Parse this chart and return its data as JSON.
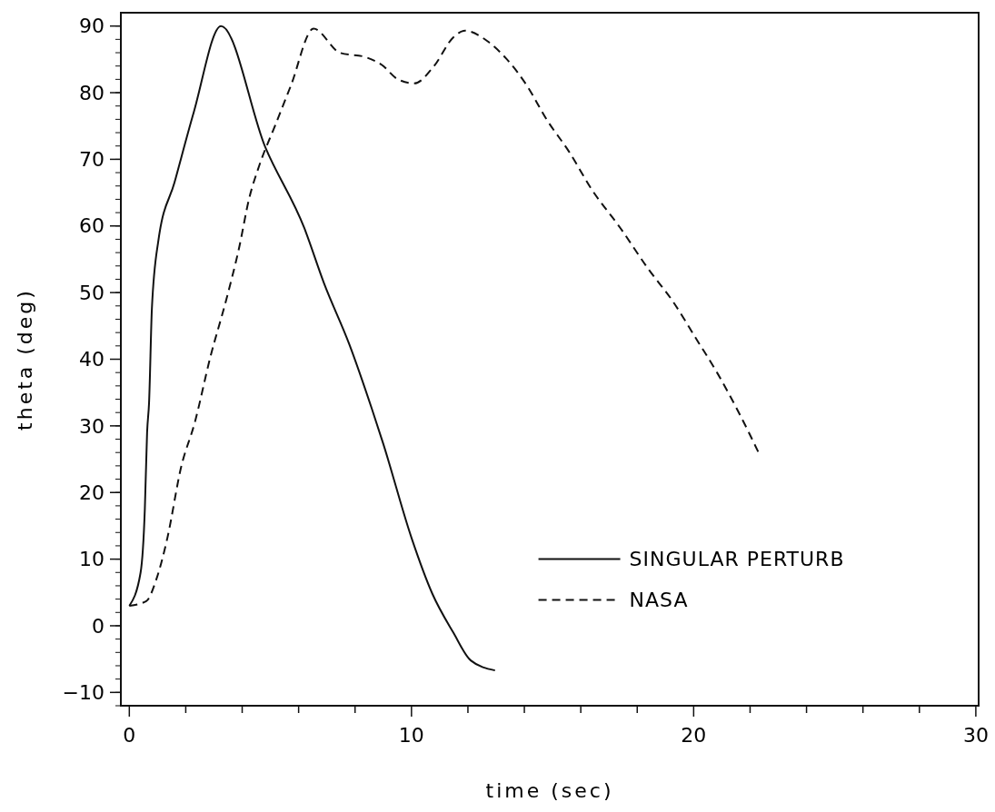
{
  "chart_data": {
    "type": "line",
    "xlabel": "time (sec)",
    "ylabel": "theta (deg)",
    "xlim": [
      -0.3,
      30.1
    ],
    "ylim": [
      -12,
      92
    ],
    "xticks": [
      0,
      {
        "value": 2,
        "label": null
      },
      {
        "value": 4,
        "label": null
      },
      {
        "value": 6,
        "label": null
      },
      {
        "value": 8,
        "label": null
      },
      10,
      {
        "value": 12,
        "label": null
      },
      {
        "value": 14,
        "label": null
      },
      {
        "value": 16,
        "label": null
      },
      {
        "value": 18,
        "label": null
      },
      20,
      {
        "value": 22,
        "label": null
      },
      {
        "value": 24,
        "label": null
      },
      {
        "value": 26,
        "label": null
      },
      {
        "value": 28,
        "label": null
      },
      30
    ],
    "yticks": [
      {
        "value": -10,
        "label": "−10"
      },
      0,
      10,
      20,
      30,
      40,
      50,
      60,
      70,
      80,
      90
    ],
    "legend": "bottom right",
    "grid": false,
    "marker": "none",
    "series": [
      {
        "name": "SINGULAR PERTURB",
        "color": "#111111",
        "line_style": "solid",
        "x": [
          0,
          0.4,
          0.55,
          0.63,
          0.7,
          0.8,
          1.03,
          1.6,
          2.28,
          3.25,
          4.82,
          6.2,
          6.9,
          7.8,
          8.6,
          9.0,
          10.0,
          10.74,
          11.48,
          12.1,
          12.96
        ],
        "values": [
          3,
          8,
          17.5,
          29,
          33.5,
          47.6,
          57.8,
          66.5,
          77,
          90,
          71.8,
          59.7,
          51.4,
          42.2,
          32.5,
          27.3,
          13.2,
          4.8,
          -1,
          -5.2,
          -6.7
        ]
      },
      {
        "name": "NASA",
        "color": "#111111",
        "line_style": "dashed",
        "x": [
          0,
          0.6,
          0.96,
          1.35,
          1.83,
          2.32,
          2.87,
          3.44,
          3.9,
          4.24,
          4.6,
          5.18,
          5.72,
          6.53,
          7.46,
          8.4,
          8.94,
          9.52,
          10.1,
          10.8,
          11.48,
          11.9,
          12.7,
          13.34,
          14.1,
          14.8,
          15.56,
          16.4,
          17.4,
          18.4,
          19.26,
          20.1,
          20.87,
          21.6,
          22.3
        ],
        "values": [
          3,
          3.7,
          7,
          13.2,
          23.7,
          30.5,
          40.3,
          49,
          56.9,
          64,
          69,
          75.2,
          81,
          89.6,
          86,
          85.3,
          84.2,
          82,
          81.4,
          84,
          88.3,
          89.3,
          87.7,
          85.2,
          81,
          75.9,
          71.3,
          65.4,
          59.7,
          53.5,
          48.7,
          43,
          37.7,
          32,
          26
        ]
      }
    ]
  }
}
